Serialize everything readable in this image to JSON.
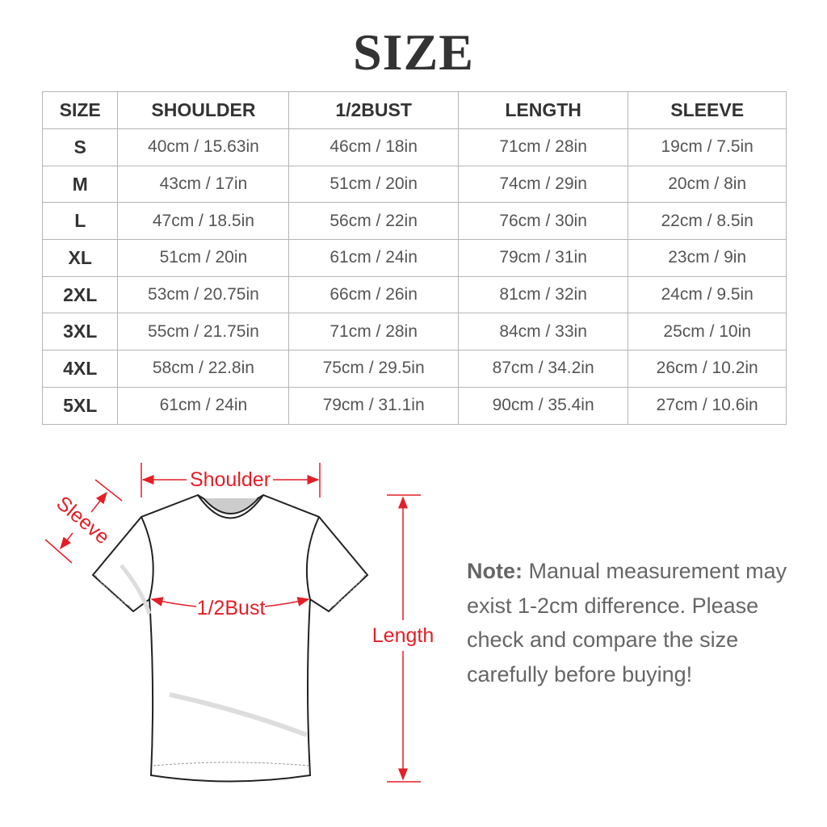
{
  "title": "SIZE",
  "table": {
    "headers": [
      "SIZE",
      "SHOULDER",
      "1/2BUST",
      "LENGTH",
      "SLEEVE"
    ],
    "rows": [
      [
        "S",
        "40cm / 15.63in",
        "46cm / 18in",
        "71cm / 28in",
        "19cm / 7.5in"
      ],
      [
        "M",
        "43cm / 17in",
        "51cm / 20in",
        "74cm / 29in",
        "20cm / 8in"
      ],
      [
        "L",
        "47cm / 18.5in",
        "56cm / 22in",
        "76cm / 30in",
        "22cm / 8.5in"
      ],
      [
        "XL",
        "51cm / 20in",
        "61cm / 24in",
        "79cm / 31in",
        "23cm / 9in"
      ],
      [
        "2XL",
        "53cm / 20.75in",
        "66cm / 26in",
        "81cm / 32in",
        "24cm / 9.5in"
      ],
      [
        "3XL",
        "55cm / 21.75in",
        "71cm / 28in",
        "84cm / 33in",
        "25cm / 10in"
      ],
      [
        "4XL",
        "58cm / 22.8in",
        "75cm / 29.5in",
        "87cm / 34.2in",
        "26cm / 10.2in"
      ],
      [
        "5XL",
        "61cm / 24in",
        "79cm / 31.1in",
        "90cm / 35.4in",
        "27cm / 10.6in"
      ]
    ]
  },
  "diagram": {
    "shoulder": "Shoulder",
    "sleeve": "Sleeve",
    "bust": "1/2Bust",
    "length": "Length",
    "accent_color": "#e41e26"
  },
  "note": {
    "label": "Note:",
    "text": " Manual measurement may exist 1-2cm difference. Please check and compare the size carefully before buying!"
  }
}
